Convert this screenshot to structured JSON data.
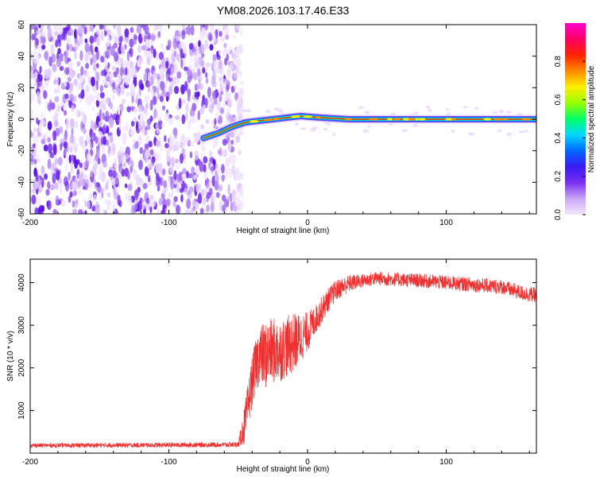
{
  "chart_data": [
    {
      "type": "heatmap",
      "title": "YM08.2026.103.17.46.E33",
      "xlabel": "Height of straight line (km)",
      "ylabel": "Frequency (Hz)",
      "xlim": [
        -200,
        165
      ],
      "ylim": [
        -60,
        60
      ],
      "xticks": [
        -200,
        -100,
        0,
        100
      ],
      "xtick_labels": [
        "-200",
        "-100",
        "0",
        "100"
      ],
      "yticks": [
        -60,
        -40,
        -20,
        0,
        20,
        40,
        60
      ],
      "ytick_labels": [
        "-60",
        "-40",
        "-20",
        "0",
        "20",
        "40",
        "60"
      ],
      "noise_region_x": [
        -200,
        -52
      ],
      "signal_line": {
        "x": [
          -75,
          -65,
          -55,
          -45,
          -35,
          -25,
          -15,
          -5,
          10,
          30,
          60,
          100,
          165
        ],
        "freq": [
          -12,
          -9,
          -5,
          -2,
          -1,
          0,
          1,
          2,
          1,
          0,
          0,
          0,
          0
        ]
      },
      "colorbar": {
        "label": "Normalized spectral amplitude",
        "range": [
          0,
          1
        ],
        "ticks": [
          0.0,
          0.2,
          0.4,
          0.6,
          0.8
        ],
        "tick_labels": [
          "0.0",
          "0.2",
          "0.4",
          "0.6",
          "0.8"
        ],
        "colormap": [
          "#f2e6ff",
          "#c9a8f5",
          "#7a2ef0",
          "#3a1bf5",
          "#0066ff",
          "#00d8ff",
          "#00ff66",
          "#99ff00",
          "#ffee00",
          "#ff8800",
          "#ff2200",
          "#ff0066",
          "#ff00cc"
        ]
      }
    },
    {
      "type": "line",
      "title": "",
      "xlabel": "Height of straight line (km)",
      "ylabel": "SNR (10 * v/v)",
      "xlim": [
        -200,
        165
      ],
      "ylim": [
        0,
        4550
      ],
      "xticks": [
        -200,
        -100,
        0,
        100
      ],
      "xtick_labels": [
        "-200",
        "-100",
        "0",
        "100"
      ],
      "yticks": [
        1000,
        2000,
        3000,
        4000
      ],
      "ytick_labels": [
        "1000",
        "2000",
        "3000",
        "4000"
      ],
      "color": "#f03030",
      "envelope": {
        "x": [
          -200,
          -100,
          -50,
          -45,
          -40,
          -35,
          -30,
          -25,
          -20,
          -15,
          -10,
          -5,
          0,
          5,
          10,
          15,
          20,
          25,
          30,
          40,
          50,
          60,
          80,
          100,
          120,
          140,
          155,
          165
        ],
        "y": [
          180,
          190,
          200,
          700,
          1700,
          2300,
          2300,
          2400,
          2400,
          2500,
          2600,
          2700,
          2850,
          3100,
          3350,
          3600,
          3800,
          3900,
          3980,
          4050,
          4100,
          4080,
          4050,
          4000,
          3950,
          3900,
          3750,
          3700
        ]
      },
      "noise_amplitude": {
        "x": [
          -200,
          -50,
          -45,
          -30,
          -10,
          5,
          20,
          40,
          165
        ],
        "y": [
          50,
          60,
          500,
          800,
          700,
          350,
          250,
          160,
          180
        ]
      }
    }
  ]
}
